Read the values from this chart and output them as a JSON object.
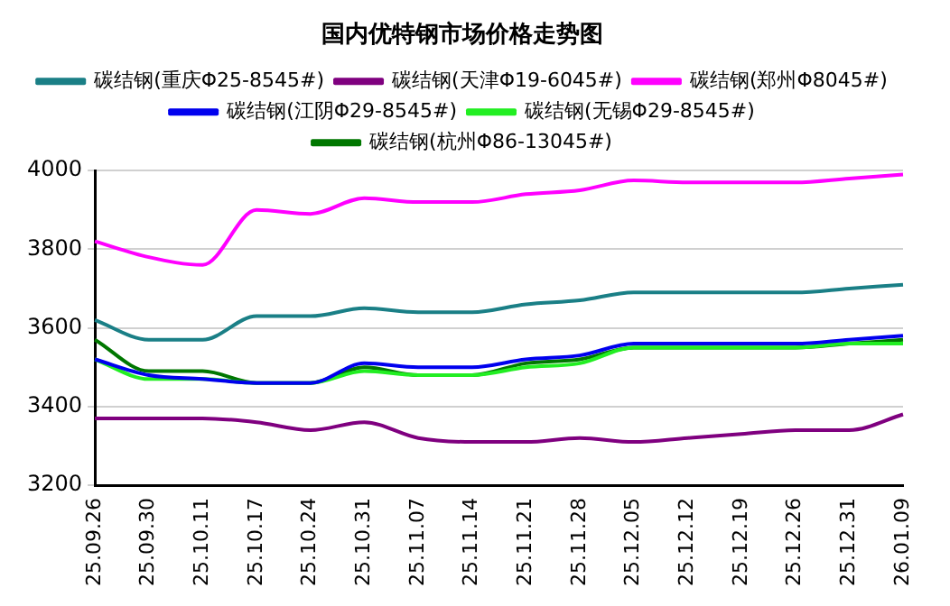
{
  "chart_data": {
    "type": "line",
    "title": "国内优特钢市场价格走势图",
    "categories": [
      "25.09.26",
      "25.09.30",
      "25.10.11",
      "25.10.17",
      "25.10.24",
      "25.10.31",
      "25.11.07",
      "25.11.14",
      "25.11.21",
      "25.11.28",
      "25.12.05",
      "25.12.12",
      "25.12.19",
      "25.12.26",
      "25.12.31",
      "26.01.09"
    ],
    "series": [
      {
        "name": "碳结钢(重庆Φ25-8545#)",
        "color": "#1a7f86",
        "values": [
          3620,
          3570,
          3570,
          3630,
          3630,
          3650,
          3640,
          3640,
          3660,
          3670,
          3690,
          3690,
          3690,
          3690,
          3700,
          3710
        ]
      },
      {
        "name": "碳结钢(天津Φ19-6045#)",
        "color": "#7f007f",
        "values": [
          3370,
          3370,
          3370,
          3360,
          3340,
          3360,
          3320,
          3310,
          3310,
          3320,
          3310,
          3320,
          3330,
          3340,
          3340,
          3380
        ]
      },
      {
        "name": "碳结钢(郑州Φ8045#)",
        "color": "#ff00ff",
        "values": [
          3820,
          3780,
          3760,
          3900,
          3890,
          3930,
          3920,
          3920,
          3940,
          3950,
          3975,
          3970,
          3970,
          3970,
          3980,
          3990
        ]
      },
      {
        "name": "碳结钢(江阴Φ29-8545#)",
        "color": "#0000ee",
        "values": [
          3520,
          3480,
          3470,
          3460,
          3460,
          3510,
          3500,
          3500,
          3520,
          3530,
          3560,
          3560,
          3560,
          3560,
          3570,
          3580
        ]
      },
      {
        "name": "碳结钢(无锡Φ29-8545#)",
        "color": "#22ee22",
        "values": [
          3520,
          3470,
          3470,
          3460,
          3460,
          3490,
          3480,
          3480,
          3500,
          3510,
          3550,
          3550,
          3550,
          3550,
          3560,
          3560
        ]
      },
      {
        "name": "碳结钢(杭州Φ86-13045#)",
        "color": "#007700",
        "values": [
          3570,
          3490,
          3490,
          3460,
          3460,
          3500,
          3480,
          3480,
          3510,
          3520,
          3550,
          3550,
          3550,
          3550,
          3560,
          3570
        ]
      }
    ],
    "ylim": [
      3200,
      4000
    ],
    "yticks": [
      3200,
      3400,
      3600,
      3800,
      4000
    ],
    "grid": "y",
    "legend": "top",
    "marker": "none",
    "line_style": "solid"
  }
}
